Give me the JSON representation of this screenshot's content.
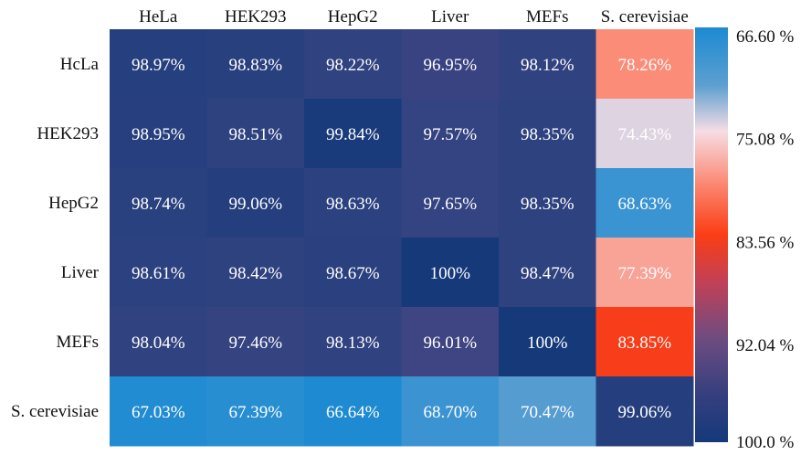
{
  "chart_data": {
    "type": "heatmap",
    "x_categories": [
      "HeLa",
      "HEK293",
      "HepG2",
      "Liver",
      "MEFs",
      "S. cerevisiae"
    ],
    "y_categories": [
      "HcLa",
      "HEK293",
      "HepG2",
      "Liver",
      "MEFs",
      "S. cerevisiae"
    ],
    "values": [
      [
        98.97,
        98.83,
        98.22,
        96.95,
        98.12,
        78.26
      ],
      [
        98.95,
        98.51,
        99.84,
        97.57,
        98.35,
        74.43
      ],
      [
        98.74,
        99.06,
        98.63,
        97.65,
        98.35,
        68.63
      ],
      [
        98.61,
        98.42,
        98.67,
        100,
        98.47,
        77.39
      ],
      [
        98.04,
        97.46,
        98.13,
        96.01,
        100,
        83.85
      ],
      [
        67.03,
        67.39,
        66.64,
        68.7,
        70.47,
        99.06
      ]
    ],
    "cell_labels": [
      [
        "98.97%",
        "98.83%",
        "98.22%",
        "96.95%",
        "98.12%",
        "78.26%"
      ],
      [
        "98.95%",
        "98.51%",
        "99.84%",
        "97.57%",
        "98.35%",
        "74.43%"
      ],
      [
        "98.74%",
        "99.06%",
        "98.63%",
        "97.65%",
        "98.35%",
        "68.63%"
      ],
      [
        "98.61%",
        "98.42%",
        "98.67%",
        "100%",
        "98.47%",
        "77.39%"
      ],
      [
        "98.04%",
        "97.46%",
        "98.13%",
        "96.01%",
        "100%",
        "83.85%"
      ],
      [
        "67.03%",
        "67.39%",
        "66.64%",
        "68.70%",
        "70.47%",
        "99.06%"
      ]
    ],
    "colorbar": {
      "ticks": [
        66.6,
        75.08,
        83.56,
        92.04,
        100.0
      ],
      "tick_labels": [
        "66.60 %",
        "75.08 %",
        "83.56 %",
        "92.04 %",
        "100.0 %"
      ]
    }
  }
}
